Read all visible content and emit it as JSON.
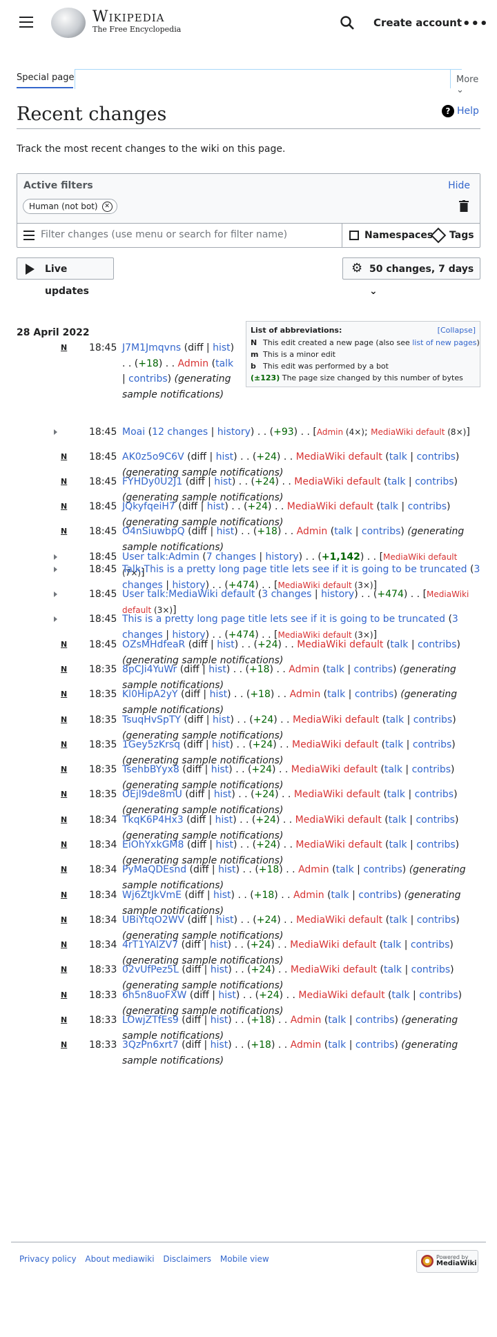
{
  "site": {
    "wordmark": "Wikipedia",
    "tagline": "The Free Encyclopedia",
    "create_account": "Create account",
    "more_dots": "•••"
  },
  "tabs": {
    "special": "Special page",
    "more": "More"
  },
  "page": {
    "title": "Recent changes",
    "help": "Help",
    "description": "Track the most recent changes to the wiki on this page."
  },
  "filters": {
    "label": "Active filters",
    "hide": "Hide",
    "chip": "Human (not bot)",
    "placeholder": "Filter changes (use menu or search for filter name)",
    "namespaces": "Namespaces",
    "tags": "Tags"
  },
  "buttons": {
    "live": "Live updates",
    "changes": "50 changes, 7 days"
  },
  "legend": {
    "title": "List of abbreviations:",
    "collapse": "[Collapse]",
    "n_key": "N",
    "n_text": "This edit created a new page (also see ",
    "n_link": "list of new pages",
    "n_end": ")",
    "m_key": "m",
    "m_text": "This is a minor edit",
    "b_key": "b",
    "b_text": "This edit was performed by a bot",
    "size_key": "(±123)",
    "size_text": "The page size changed by this number of bytes"
  },
  "date": "28 April 2022",
  "entries": [
    {
      "type": "new",
      "time": "18:45",
      "title": "J7M1Jmqvns",
      "size": "+18",
      "user": "Admin",
      "first": true
    },
    {
      "type": "group",
      "time": "18:45",
      "title": "Moai",
      "count": "12 changes",
      "size": "+93",
      "users": [
        [
          "Admin",
          "(4×)"
        ],
        [
          "MediaWiki default",
          "(8×)"
        ]
      ]
    },
    {
      "type": "new",
      "time": "18:45",
      "title": "AK0z5o9C6V",
      "size": "+24",
      "user": "MediaWiki default"
    },
    {
      "type": "new",
      "time": "18:45",
      "title": "FYHDy0U2J1",
      "size": "+24",
      "user": "MediaWiki default"
    },
    {
      "type": "new",
      "time": "18:45",
      "title": "JQkyfqeiH7",
      "size": "+24",
      "user": "MediaWiki default"
    },
    {
      "type": "new",
      "time": "18:45",
      "title": "O4nSiuwbpQ",
      "size": "+18",
      "user": "Admin"
    },
    {
      "type": "group",
      "time": "18:45",
      "title": "User talk:Admin",
      "count": "7 changes",
      "size": "+1,142",
      "sizeBold": true,
      "users": [
        [
          "MediaWiki default",
          "(7×)"
        ]
      ]
    },
    {
      "type": "group",
      "time": "18:45",
      "title": "Talk:This is a pretty long page title lets see if it is going to be truncated",
      "count": "3 changes",
      "size": "+474",
      "users": [
        [
          "MediaWiki default",
          "(3×)"
        ]
      ]
    },
    {
      "type": "group",
      "time": "18:45",
      "title": "User talk:MediaWiki default",
      "count": "3 changes",
      "size": "+474",
      "users": [
        [
          "MediaWiki default",
          "(3×)"
        ]
      ]
    },
    {
      "type": "group",
      "time": "18:45",
      "title": "This is a pretty long page title lets see if it is going to be truncated",
      "count": "3 changes",
      "size": "+474",
      "users": [
        [
          "MediaWiki default",
          "(3×)"
        ]
      ]
    },
    {
      "type": "new",
      "time": "18:45",
      "title": "OZsMHdfeaR",
      "size": "+24",
      "user": "MediaWiki default"
    },
    {
      "type": "new",
      "time": "18:35",
      "title": "8pCJi4YuWr",
      "size": "+18",
      "user": "Admin"
    },
    {
      "type": "new",
      "time": "18:35",
      "title": "Kl0HipA2yY",
      "size": "+18",
      "user": "Admin"
    },
    {
      "type": "new",
      "time": "18:35",
      "title": "TsuqHvSpTY",
      "size": "+24",
      "user": "MediaWiki default"
    },
    {
      "type": "new",
      "time": "18:35",
      "title": "1Gey5zKrsq",
      "size": "+24",
      "user": "MediaWiki default"
    },
    {
      "type": "new",
      "time": "18:35",
      "title": "TsehbBYyx8",
      "size": "+24",
      "user": "MediaWiki default"
    },
    {
      "type": "new",
      "time": "18:35",
      "title": "OEjl9de8mU",
      "size": "+24",
      "user": "MediaWiki default"
    },
    {
      "type": "new",
      "time": "18:34",
      "title": "TkqK6P4Hx3",
      "size": "+24",
      "user": "MediaWiki default"
    },
    {
      "type": "new",
      "time": "18:34",
      "title": "EiOhYxkGM8",
      "size": "+24",
      "user": "MediaWiki default"
    },
    {
      "type": "new",
      "time": "18:34",
      "title": "PyMaQDEsnd",
      "size": "+18",
      "user": "Admin"
    },
    {
      "type": "new",
      "time": "18:34",
      "title": "Wj6ZtJkVmE",
      "size": "+18",
      "user": "Admin"
    },
    {
      "type": "new",
      "time": "18:34",
      "title": "UBiYtqO2WV",
      "size": "+24",
      "user": "MediaWiki default"
    },
    {
      "type": "new",
      "time": "18:34",
      "title": "4rT1YAlZV7",
      "size": "+24",
      "user": "MediaWiki default"
    },
    {
      "type": "new",
      "time": "18:33",
      "title": "02vUfPez5L",
      "size": "+24",
      "user": "MediaWiki default"
    },
    {
      "type": "new",
      "time": "18:33",
      "title": "6h5n8uoFXW",
      "size": "+24",
      "user": "MediaWiki default"
    },
    {
      "type": "new",
      "time": "18:33",
      "title": "LOwjZTfEs9",
      "size": "+18",
      "user": "Admin"
    },
    {
      "type": "new",
      "time": "18:33",
      "title": "3QzPn6xrt7",
      "size": "+18",
      "user": "Admin"
    }
  ],
  "common": {
    "flag": "N",
    "diff": "diff",
    "hist": "hist",
    "history": "history",
    "talk": "talk",
    "contribs": "contribs",
    "summary": "(generating sample notifications)"
  },
  "footer": {
    "privacy": "Privacy policy",
    "about": "About mediawiki",
    "disclaimers": "Disclaimers",
    "mobile": "Mobile view"
  },
  "powered": {
    "line1": "Powered by",
    "line2": "MediaWiki"
  }
}
